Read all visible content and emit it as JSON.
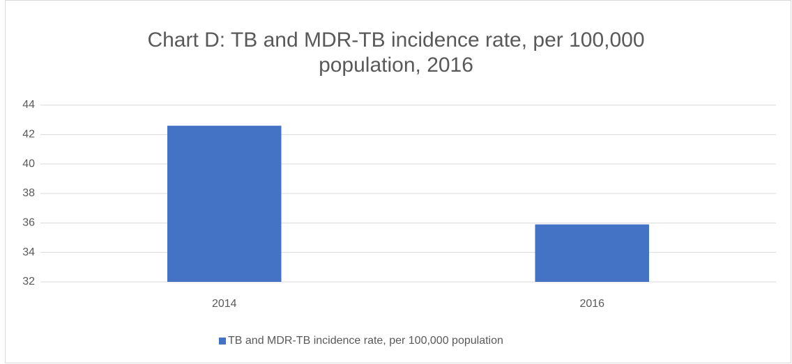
{
  "chart_data": {
    "type": "bar",
    "title": "Chart D: TB and MDR-TB incidence rate, per 100,000 population, 2016",
    "categories": [
      "2014",
      "2016"
    ],
    "series": [
      {
        "name": "TB and MDR-TB incidence rate, per 100,000 population",
        "color": "#4472c4",
        "values": [
          42.6,
          35.9
        ]
      }
    ],
    "ylim": [
      32,
      44
    ],
    "yticks": [
      32,
      34,
      36,
      38,
      40,
      42,
      44
    ],
    "grid": true,
    "legend": "bottom"
  }
}
